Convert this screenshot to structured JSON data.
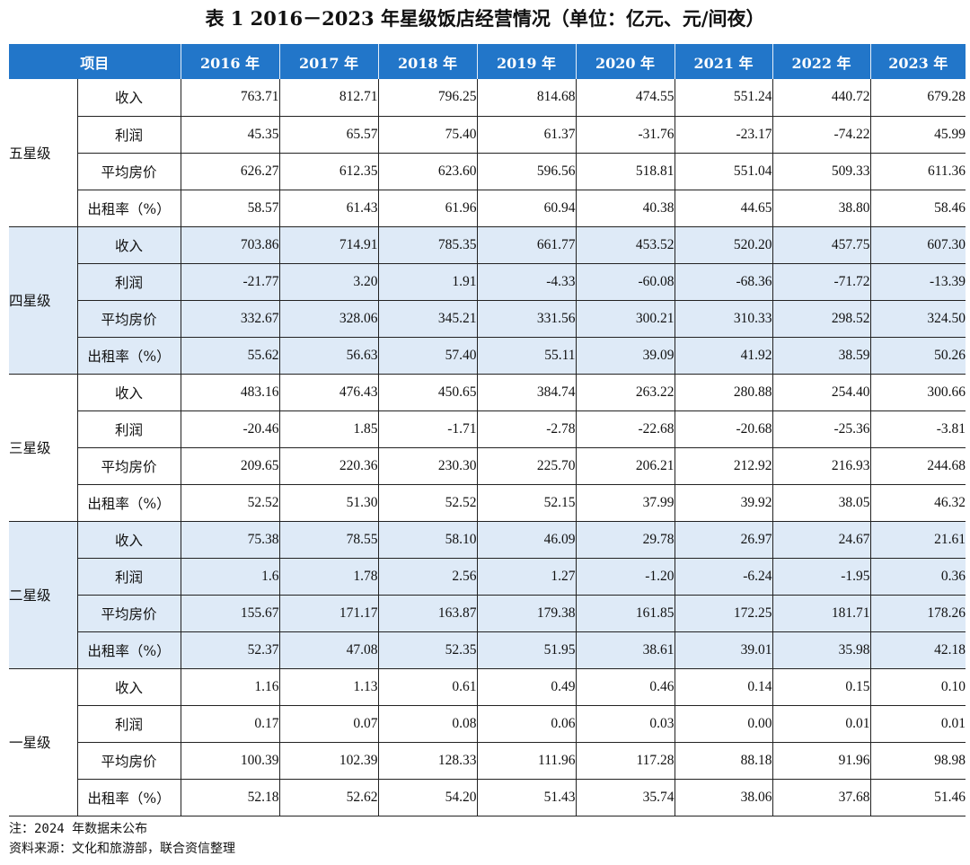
{
  "title": "表 1   2016－2023 年星级饭店经营情况（单位：亿元、元/间夜）",
  "header": [
    "项目",
    "2016 年",
    "2017 年",
    "2018 年",
    "2019 年",
    "2020 年",
    "2021 年",
    "2022 年",
    "2023 年"
  ],
  "groups": [
    {
      "name": "五星级",
      "shaded": false,
      "rows": [
        {
          "label": "收入",
          "values": [
            "763.71",
            "812.71",
            "796.25",
            "814.68",
            "474.55",
            "551.24",
            "440.72",
            "679.28"
          ]
        },
        {
          "label": "利润",
          "values": [
            "45.35",
            "65.57",
            "75.40",
            "61.37",
            "-31.76",
            "-23.17",
            "-74.22",
            "45.99"
          ]
        },
        {
          "label": "平均房价",
          "values": [
            "626.27",
            "612.35",
            "623.60",
            "596.56",
            "518.81",
            "551.04",
            "509.33",
            "611.36"
          ]
        },
        {
          "label": "出租率（%）",
          "values": [
            "58.57",
            "61.43",
            "61.96",
            "60.94",
            "40.38",
            "44.65",
            "38.80",
            "58.46"
          ]
        }
      ]
    },
    {
      "name": "四星级",
      "shaded": true,
      "rows": [
        {
          "label": "收入",
          "values": [
            "703.86",
            "714.91",
            "785.35",
            "661.77",
            "453.52",
            "520.20",
            "457.75",
            "607.30"
          ]
        },
        {
          "label": "利润",
          "values": [
            "-21.77",
            "3.20",
            "1.91",
            "-4.33",
            "-60.08",
            "-68.36",
            "-71.72",
            "-13.39"
          ]
        },
        {
          "label": "平均房价",
          "values": [
            "332.67",
            "328.06",
            "345.21",
            "331.56",
            "300.21",
            "310.33",
            "298.52",
            "324.50"
          ]
        },
        {
          "label": "出租率（%）",
          "values": [
            "55.62",
            "56.63",
            "57.40",
            "55.11",
            "39.09",
            "41.92",
            "38.59",
            "50.26"
          ]
        }
      ]
    },
    {
      "name": "三星级",
      "shaded": false,
      "rows": [
        {
          "label": "收入",
          "values": [
            "483.16",
            "476.43",
            "450.65",
            "384.74",
            "263.22",
            "280.88",
            "254.40",
            "300.66"
          ]
        },
        {
          "label": "利润",
          "values": [
            "-20.46",
            "1.85",
            "-1.71",
            "-2.78",
            "-22.68",
            "-20.68",
            "-25.36",
            "-3.81"
          ]
        },
        {
          "label": "平均房价",
          "values": [
            "209.65",
            "220.36",
            "230.30",
            "225.70",
            "206.21",
            "212.92",
            "216.93",
            "244.68"
          ]
        },
        {
          "label": "出租率（%）",
          "values": [
            "52.52",
            "51.30",
            "52.52",
            "52.15",
            "37.99",
            "39.92",
            "38.05",
            "46.32"
          ]
        }
      ]
    },
    {
      "name": "二星级",
      "shaded": true,
      "rows": [
        {
          "label": "收入",
          "values": [
            "75.38",
            "78.55",
            "58.10",
            "46.09",
            "29.78",
            "26.97",
            "24.67",
            "21.61"
          ]
        },
        {
          "label": "利润",
          "values": [
            "1.6",
            "1.78",
            "2.56",
            "1.27",
            "-1.20",
            "-6.24",
            "-1.95",
            "0.36"
          ]
        },
        {
          "label": "平均房价",
          "values": [
            "155.67",
            "171.17",
            "163.87",
            "179.38",
            "161.85",
            "172.25",
            "181.71",
            "178.26"
          ]
        },
        {
          "label": "出租率（%）",
          "values": [
            "52.37",
            "47.08",
            "52.35",
            "51.95",
            "38.61",
            "39.01",
            "35.98",
            "42.18"
          ]
        }
      ]
    },
    {
      "name": "一星级",
      "shaded": false,
      "rows": [
        {
          "label": "收入",
          "values": [
            "1.16",
            "1.13",
            "0.61",
            "0.49",
            "0.46",
            "0.14",
            "0.15",
            "0.10"
          ]
        },
        {
          "label": "利润",
          "values": [
            "0.17",
            "0.07",
            "0.08",
            "0.06",
            "0.03",
            "0.00",
            "0.01",
            "0.01"
          ]
        },
        {
          "label": "平均房价",
          "values": [
            "100.39",
            "102.39",
            "128.33",
            "111.96",
            "117.28",
            "88.18",
            "91.96",
            "98.98"
          ]
        },
        {
          "label": "出租率（%）",
          "values": [
            "52.18",
            "52.62",
            "54.20",
            "51.43",
            "35.74",
            "38.06",
            "37.68",
            "51.46"
          ]
        }
      ]
    }
  ],
  "notes": [
    "注：2024 年数据未公布",
    "资料来源：文化和旅游部，联合资信整理"
  ],
  "colors": {
    "header_bg": "#2276C9",
    "shade_bg": "#DEEAF7"
  }
}
